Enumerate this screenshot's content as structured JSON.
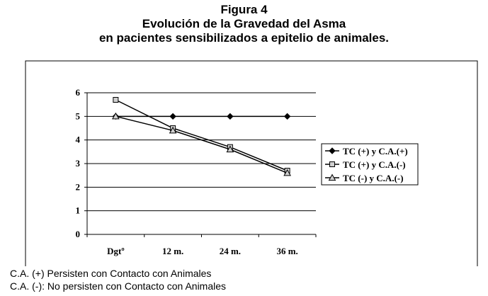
{
  "figure": {
    "label": "Figura 4",
    "title_line1": "Evolución de la Gravedad del Asma",
    "title_line2": "en pacientes sensibilizados a epitelio de animales."
  },
  "chart_data": {
    "type": "line",
    "categories": [
      "Dgtº",
      "12 m.",
      "24 m.",
      "36 m."
    ],
    "ylim": [
      0,
      6
    ],
    "yticks": [
      0,
      1,
      2,
      3,
      4,
      5,
      6
    ],
    "grid": true,
    "legend_position": "right",
    "series": [
      {
        "name": "TC (+) y C.A.(+)",
        "marker": "diamond",
        "color": "#000000",
        "values": [
          5,
          5,
          5,
          5
        ]
      },
      {
        "name": "TC (+) y C.A.(-)",
        "marker": "square",
        "color": "#000000",
        "values": [
          5.7,
          4.5,
          3.7,
          2.7
        ]
      },
      {
        "name": "TC (-)  y C.A.(-)",
        "marker": "triangle",
        "color": "#000000",
        "values": [
          5,
          4.4,
          3.6,
          2.6
        ]
      }
    ]
  },
  "notes": {
    "line1": "C.A. (+) Persisten con Contacto con Animales",
    "line2": "C.A. (-): No persisten con Contacto con Animales"
  }
}
